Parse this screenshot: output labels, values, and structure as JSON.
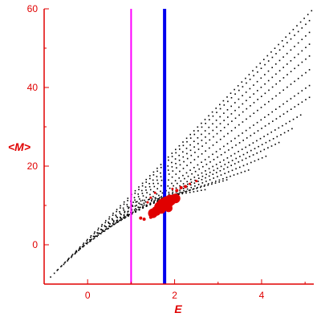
{
  "chart_data": {
    "type": "scatter",
    "title": "",
    "xlabel": "E",
    "ylabel": "<M>",
    "xlim": [
      -1.0,
      5.2
    ],
    "ylim": [
      -10,
      60
    ],
    "x_ticks": [
      0,
      2,
      4
    ],
    "x_tick_labels": [
      "0",
      "2",
      "4"
    ],
    "y_ticks": [
      0,
      20,
      40,
      60
    ],
    "y_tick_labels": [
      "0",
      "20",
      "40",
      "60"
    ],
    "axis_color": "#e00000",
    "grid": false,
    "legend": "none",
    "series": [
      {
        "color": "#000000",
        "marker": "dot",
        "bands": [
          {
            "x_start": -0.85,
            "y_start": -8.2,
            "x_end": 5.15,
            "y_end": 59.5
          },
          {
            "x_start": -0.7,
            "y_start": -6.5,
            "x_end": 5.1,
            "y_end": 57.0
          },
          {
            "x_start": -0.55,
            "y_start": -5.0,
            "x_end": 5.1,
            "y_end": 54.0
          },
          {
            "x_start": -0.45,
            "y_start": -3.8,
            "x_end": 5.1,
            "y_end": 51.0
          },
          {
            "x_start": -0.25,
            "y_start": -1.8,
            "x_end": 5.1,
            "y_end": 48.0
          },
          {
            "x_start": -0.1,
            "y_start": -0.5,
            "x_end": 5.1,
            "y_end": 44.5
          },
          {
            "x_start": 0.05,
            "y_start": 0.8,
            "x_end": 5.1,
            "y_end": 40.5
          },
          {
            "x_start": 0.2,
            "y_start": 2.2,
            "x_end": 5.1,
            "y_end": 37.5
          },
          {
            "x_start": 0.35,
            "y_start": 3.5,
            "x_end": 4.9,
            "y_end": 33.0
          },
          {
            "x_start": 0.5,
            "y_start": 4.8,
            "x_end": 4.7,
            "y_end": 29.5
          },
          {
            "x_start": 0.6,
            "y_start": 5.8,
            "x_end": 4.4,
            "y_end": 26.0
          },
          {
            "x_start": 0.75,
            "y_start": 7.0,
            "x_end": 4.1,
            "y_end": 22.5
          },
          {
            "x_start": 0.85,
            "y_start": 8.2,
            "x_end": 3.7,
            "y_end": 19.0
          },
          {
            "x_start": 0.95,
            "y_start": 9.5,
            "x_end": 3.2,
            "y_end": 16.5
          },
          {
            "x_start": 1.05,
            "y_start": 10.8,
            "x_end": 2.7,
            "y_end": 14.0
          }
        ]
      },
      {
        "color": "#e00000",
        "marker": "dot",
        "points": [
          {
            "x": 1.5,
            "y": 8.0,
            "size": 6
          },
          {
            "x": 1.58,
            "y": 8.6,
            "size": 6
          },
          {
            "x": 1.66,
            "y": 9.6,
            "size": 7
          },
          {
            "x": 1.74,
            "y": 10.2,
            "size": 8
          },
          {
            "x": 1.82,
            "y": 10.7,
            "size": 8
          },
          {
            "x": 1.9,
            "y": 11.3,
            "size": 7
          },
          {
            "x": 2.02,
            "y": 11.8,
            "size": 6
          },
          {
            "x": 1.7,
            "y": 8.9,
            "size": 5
          },
          {
            "x": 1.86,
            "y": 9.3,
            "size": 5
          },
          {
            "x": 1.3,
            "y": 6.5,
            "size": 2
          },
          {
            "x": 1.22,
            "y": 6.8,
            "size": 2
          },
          {
            "x": 1.45,
            "y": 7.0,
            "size": 2
          },
          {
            "x": 1.38,
            "y": 10.8,
            "size": 1.5
          },
          {
            "x": 1.45,
            "y": 12.0,
            "size": 1.5
          },
          {
            "x": 1.55,
            "y": 13.2,
            "size": 1.5
          },
          {
            "x": 2.05,
            "y": 13.8,
            "size": 2
          },
          {
            "x": 2.15,
            "y": 14.5,
            "size": 2
          },
          {
            "x": 2.25,
            "y": 14.8,
            "size": 2
          },
          {
            "x": 2.35,
            "y": 15.5,
            "size": 1.5
          },
          {
            "x": 2.5,
            "y": 16.2,
            "size": 1.5
          },
          {
            "x": 1.95,
            "y": 14.2,
            "size": 1.5
          }
        ]
      }
    ],
    "vertical_lines": [
      {
        "x": 1.0,
        "color": "#ff00ff",
        "width": 2
      },
      {
        "x": 1.77,
        "color": "#0000ee",
        "width": 4
      }
    ]
  }
}
